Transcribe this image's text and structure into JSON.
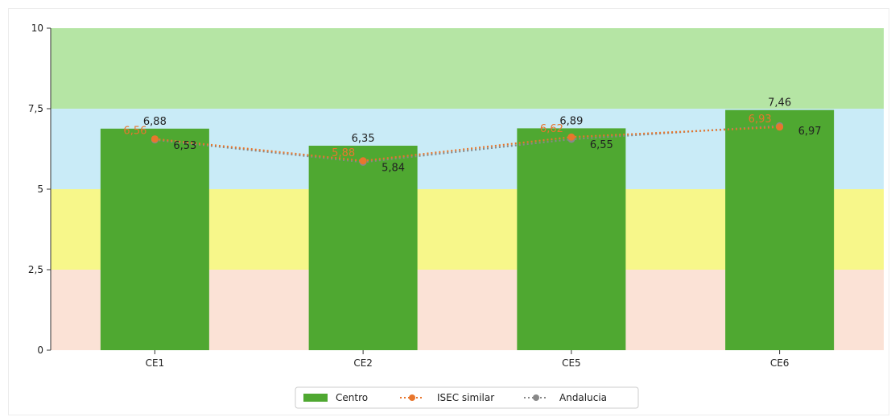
{
  "chart_data": {
    "type": "bar",
    "categories": [
      "CE1",
      "CE2",
      "CE5",
      "CE6"
    ],
    "series": [
      {
        "name": "Centro",
        "type": "bar",
        "color": "#4fa831",
        "values": [
          6.88,
          6.35,
          6.89,
          7.46
        ],
        "labels": [
          "6,88",
          "6,35",
          "6,89",
          "7,46"
        ]
      },
      {
        "name": "ISEC similar",
        "type": "line",
        "style": "dotted",
        "color": "#e8762d",
        "values": [
          6.56,
          5.88,
          6.62,
          6.93
        ],
        "labels": [
          "6,56",
          "5,88",
          "6,62",
          "6,93"
        ]
      },
      {
        "name": "Andalucia",
        "type": "line",
        "style": "dotted",
        "color": "#888888",
        "values": [
          6.53,
          5.84,
          6.55,
          6.97
        ],
        "labels": [
          "6,53",
          "5,84",
          "6,55",
          "6,97"
        ]
      }
    ],
    "ylim": [
      0,
      10
    ],
    "yticks": [
      0,
      2.5,
      5,
      7.5,
      10
    ],
    "ytick_labels": [
      "0",
      "2,5",
      "5",
      "7,5",
      "10"
    ],
    "bands": [
      {
        "from": 0,
        "to": 2.5,
        "color": "#fbe2d6"
      },
      {
        "from": 2.5,
        "to": 5,
        "color": "#f7f78a"
      },
      {
        "from": 5,
        "to": 7.5,
        "color": "#c9ebf7"
      },
      {
        "from": 7.5,
        "to": 10,
        "color": "#b5e5a4"
      }
    ],
    "legend": "bottom-center",
    "grid": false
  }
}
